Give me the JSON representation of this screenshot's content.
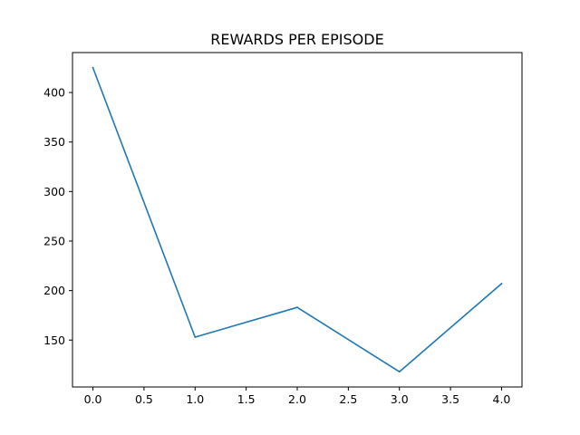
{
  "chart_data": {
    "type": "line",
    "title": "REWARDS PER EPISODE",
    "xlabel": "",
    "ylabel": "",
    "x": [
      0,
      1,
      2,
      3,
      4
    ],
    "series": [
      {
        "values": [
          425,
          153,
          183,
          118,
          207
        ],
        "color": "#1f77b4"
      }
    ],
    "xlim": [
      -0.2,
      4.2
    ],
    "ylim": [
      102.65,
      440.35
    ],
    "xticks": [
      0.0,
      0.5,
      1.0,
      1.5,
      2.0,
      2.5,
      3.0,
      3.5,
      4.0
    ],
    "xtick_labels": [
      "0.0",
      "0.5",
      "1.0",
      "1.5",
      "2.0",
      "2.5",
      "3.0",
      "3.5",
      "4.0"
    ],
    "yticks": [
      150,
      200,
      250,
      300,
      350,
      400
    ],
    "ytick_labels": [
      "150",
      "200",
      "250",
      "300",
      "350",
      "400"
    ],
    "grid": false,
    "legend": "none"
  }
}
